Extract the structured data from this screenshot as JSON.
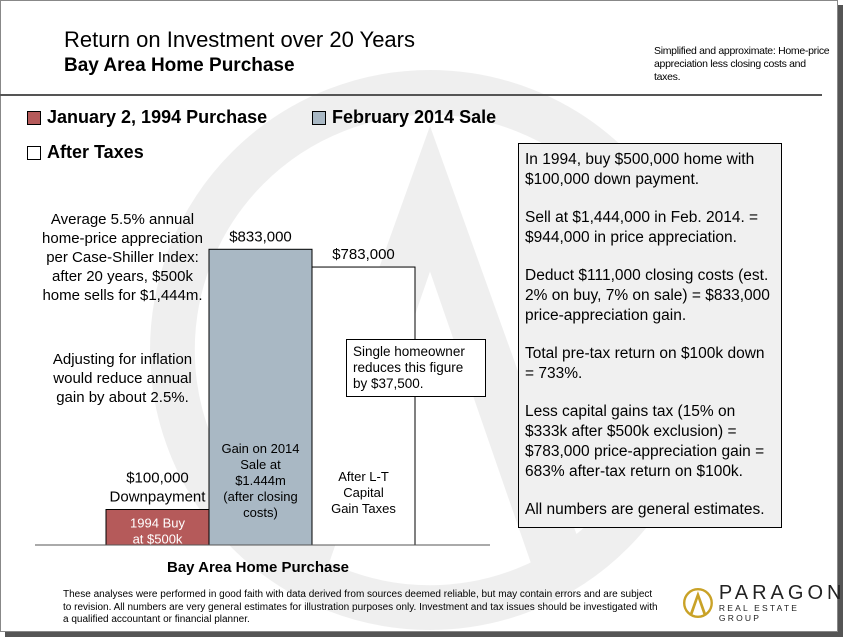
{
  "header": {
    "title": "Return on Investment over 20 Years",
    "subtitle": "Bay Area Home Purchase",
    "note": "Simplified and approximate: Home-price appreciation less closing costs and taxes."
  },
  "legend": [
    {
      "label": "January 2, 1994 Purchase",
      "color": "#b55a5a"
    },
    {
      "label": "February 2014 Sale",
      "color": "#a9b8c4"
    },
    {
      "label": "After Taxes",
      "color": "#ffffff"
    }
  ],
  "chart_data": {
    "type": "bar",
    "title": "",
    "xlabel": "Bay Area Home Purchase",
    "ylabel": "",
    "ylim": [
      0,
      1000000
    ],
    "categories": [
      "January 2, 1994 Purchase",
      "February 2014 Sale",
      "After Taxes"
    ],
    "values": [
      100000,
      833000,
      783000
    ],
    "colors": [
      "#b55a5a",
      "#a9b8c4",
      "#ffffff"
    ],
    "value_labels": [
      "$100,000",
      "$833,000",
      "$783,000"
    ],
    "top_labels": [
      "$100,000\nDownpayment",
      "$833,000",
      "$783,000"
    ],
    "inner_labels": [
      "1994 Buy\nat $500k",
      "Gain on 2014\nSale at\n$1.444m\n(after closing\ncosts)",
      "After L-T\nCapital\nGain Taxes"
    ],
    "grid": false
  },
  "left_annotations": {
    "para1": "Average 5.5% annual home-price appreciation per Case-Shiller Index: after 20 years, $500k home sells for $1,444m.",
    "para2": "Adjusting for inflation would reduce annual gain by about 2.5%."
  },
  "callout": "Single homeowner reduces this figure by $37,500.",
  "info_box": [
    "In 1994, buy $500,000 home with $100,000 down payment.",
    "Sell at $1,444,000 in Feb. 2014. = $944,000 in price appreciation.",
    "Deduct $111,000 closing costs (est. 2% on buy, 7% on sale) = $833,000 price-appreciation gain.",
    "Total pre-tax return on $100k down = 733%.",
    "Less capital gains tax (15% on $333k after $500k exclusion) = $783,000 price-appreciation gain = 683% after-tax return on $100k.",
    "All numbers are general estimates."
  ],
  "footer": "These analyses were performed in good faith with data derived from sources deemed reliable, but may contain errors and are subject to revision. All numbers are very general estimates for illustration purposes only. Investment and tax issues should be investigated with a qualified accountant or financial planner.",
  "logo": {
    "name": "PARAGON",
    "tagline": "REAL ESTATE GROUP"
  }
}
